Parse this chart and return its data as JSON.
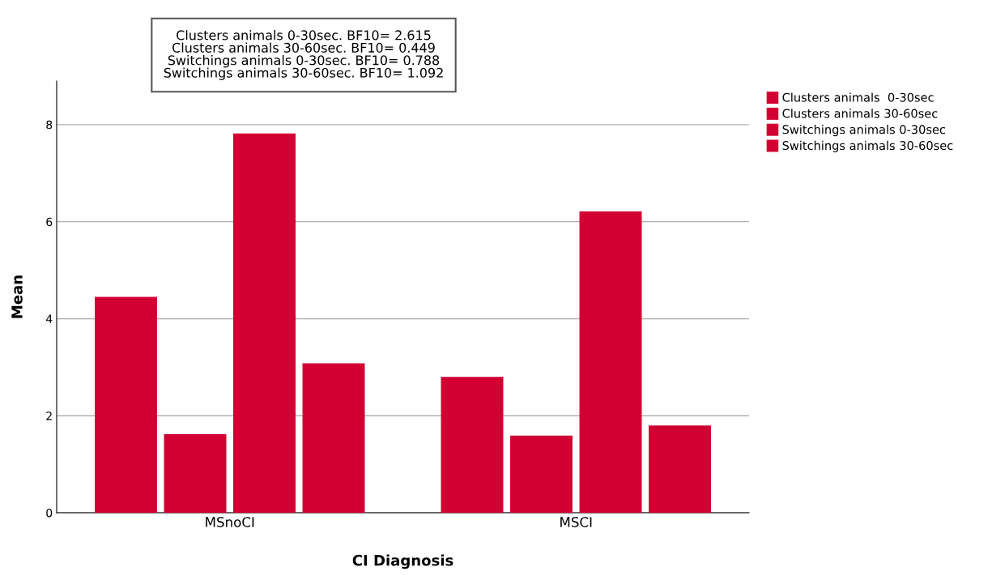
{
  "chart_data": {
    "type": "bar",
    "xlabel": "CI Diagnosis",
    "ylabel": "Mean",
    "categories": [
      "MSnoCI",
      "MSCI"
    ],
    "series": [
      {
        "name": "Clusters animals  0-30sec",
        "color": "#d20032",
        "values": [
          4.45,
          2.8
        ]
      },
      {
        "name": "Clusters animals 30-60sec",
        "color": "#d20032",
        "values": [
          1.62,
          1.59
        ]
      },
      {
        "name": "Switchings animals 0-30sec",
        "color": "#d20032",
        "values": [
          7.82,
          6.21
        ]
      },
      {
        "name": "Switchings animals 30-60sec",
        "color": "#d20032",
        "values": [
          3.08,
          1.8
        ]
      }
    ],
    "ylim": [
      0,
      8.9
    ],
    "yticks": [
      0,
      2,
      4,
      6,
      8
    ],
    "grid": "y",
    "legend": "top right",
    "annotations": [
      "Clusters animals 0-30sec. BF10= 2.615",
      "Clusters animals 30-60sec. BF10= 0.449",
      "Switchings animals 0-30sec. BF10= 0.788",
      "Switchings animals 30-60sec. BF10= 1.092"
    ]
  }
}
